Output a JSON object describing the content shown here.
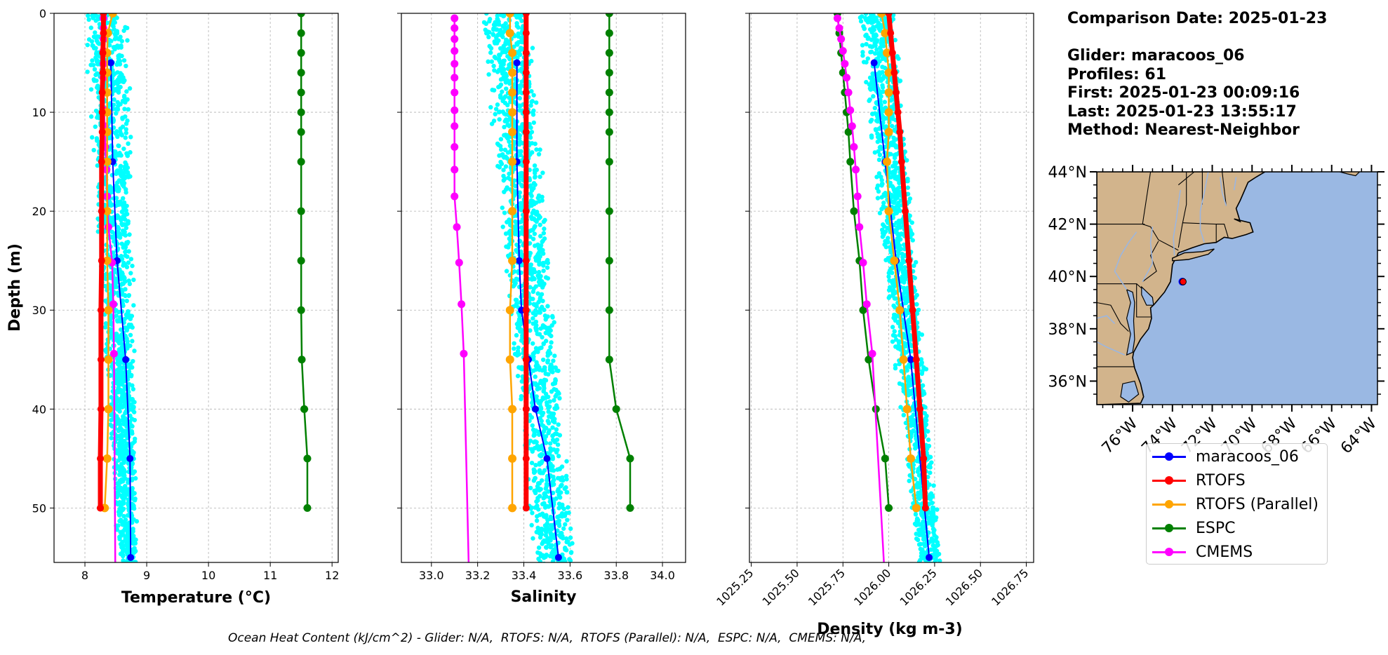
{
  "colors": {
    "glider": "#0000ff",
    "rtofs": "#ff0000",
    "rtofs_parallel": "#ffa500",
    "espc": "#008000",
    "cmems": "#ff00ff",
    "glider_points": "#00ffff",
    "land": "#d2b48c",
    "ocean": "#9ab8e3",
    "river": "#9cb6df"
  },
  "info": {
    "comparison_date": "Comparison Date: 2025-01-23",
    "glider": "Glider: maracoos_06",
    "profiles": "Profiles: 61",
    "first": "First: 2025-01-23 00:09:16",
    "last": "Last: 2025-01-23 13:55:17",
    "method": "Method: Nearest-Neighbor"
  },
  "footnote": "Ocean Heat Content (kJ/cm^2) - Glider: N/A,  RTOFS: N/A,  RTOFS (Parallel): N/A,  ESPC: N/A,  CMEMS: N/A,",
  "legend": [
    {
      "label": "maracoos_06",
      "color": "#0000ff"
    },
    {
      "label": "RTOFS",
      "color": "#ff0000"
    },
    {
      "label": "RTOFS (Parallel)",
      "color": "#ffa500"
    },
    {
      "label": "ESPC",
      "color": "#008000"
    },
    {
      "label": "CMEMS",
      "color": "#ff00ff"
    }
  ],
  "chart_data": [
    {
      "type": "line",
      "xlabel": "Temperature (°C)",
      "ylabel": "Depth (m)",
      "xlim": [
        7.5,
        12.1
      ],
      "ylim": [
        55.5,
        0
      ],
      "xticks": [
        8,
        9,
        10,
        11,
        12
      ],
      "yticks": [
        0,
        10,
        20,
        30,
        40,
        50
      ],
      "grid": true,
      "scatter": {
        "name": "glider profiles",
        "x_range_top": [
          8.0,
          8.7
        ],
        "x_range_bottom": [
          8.55,
          8.85
        ]
      },
      "series": [
        {
          "name": "maracoos_06",
          "x": [
            8.42,
            8.45,
            8.52,
            8.66,
            8.73,
            8.74
          ],
          "y": [
            5,
            15,
            25,
            35,
            45,
            55
          ]
        },
        {
          "name": "RTOFS",
          "x": [
            8.3,
            8.3,
            8.29,
            8.29,
            8.28,
            8.28,
            8.28,
            8.27,
            8.27,
            8.27,
            8.26,
            8.26,
            8.26,
            8.25,
            8.25,
            8.25
          ],
          "y": [
            0,
            2,
            4,
            6,
            8,
            10,
            12,
            15,
            20,
            25,
            30,
            35,
            40,
            45,
            50,
            50
          ]
        },
        {
          "name": "RTOFS (Parallel)",
          "x": [
            8.45,
            8.37,
            8.36,
            8.36,
            8.36,
            8.36,
            8.36,
            8.36,
            8.36,
            8.36,
            8.38,
            8.38,
            8.38,
            8.36,
            8.32
          ],
          "y": [
            0,
            2,
            4,
            6,
            8,
            10,
            12,
            15,
            20,
            25,
            30,
            35,
            40,
            45,
            50
          ]
        },
        {
          "name": "ESPC",
          "x": [
            11.5,
            11.5,
            11.5,
            11.5,
            11.5,
            11.5,
            11.5,
            11.5,
            11.5,
            11.5,
            11.5,
            11.51,
            11.55,
            11.6,
            11.6
          ],
          "y": [
            0,
            2,
            4,
            6,
            8,
            10,
            12,
            15,
            20,
            25,
            30,
            35,
            40,
            45,
            50
          ]
        },
        {
          "name": "CMEMS",
          "x": [
            8.3,
            8.3,
            8.3,
            8.3,
            8.3,
            8.3,
            8.3,
            8.31,
            8.32,
            8.33,
            8.35,
            8.36,
            8.38,
            8.44,
            8.46,
            8.47
          ],
          "y": [
            0.5,
            1.5,
            2.6,
            3.8,
            5.1,
            6.5,
            8,
            9.8,
            11.4,
            13.5,
            15.8,
            18.5,
            21.6,
            25.2,
            29.4,
            34.4
          ]
        }
      ]
    },
    {
      "type": "line",
      "xlabel": "Salinity",
      "ylabel": "",
      "xlim": [
        32.87,
        34.1
      ],
      "ylim": [
        55.5,
        0
      ],
      "xticks": [
        33.0,
        33.2,
        33.4,
        33.6,
        33.8,
        34.0
      ],
      "yticks": [
        0,
        10,
        20,
        30,
        40,
        50
      ],
      "grid": true,
      "scatter": {
        "name": "glider profiles",
        "x_range_top": [
          33.22,
          33.42
        ],
        "x_range_bottom": [
          33.45,
          33.62
        ]
      },
      "series": [
        {
          "name": "maracoos_06",
          "x": [
            33.37,
            33.37,
            33.38,
            33.39,
            33.42,
            33.45,
            33.5,
            33.55
          ],
          "y": [
            5,
            15,
            25,
            30,
            35,
            40,
            45,
            55
          ]
        },
        {
          "name": "RTOFS",
          "x": [
            33.41,
            33.41,
            33.41,
            33.41,
            33.41,
            33.41,
            33.41,
            33.41,
            33.41,
            33.41,
            33.41,
            33.41,
            33.41,
            33.41,
            33.41
          ],
          "y": [
            0,
            2,
            4,
            6,
            8,
            10,
            12,
            15,
            20,
            25,
            30,
            35,
            40,
            45,
            50
          ]
        },
        {
          "name": "RTOFS (Parallel)",
          "x": [
            33.34,
            33.34,
            33.35,
            33.35,
            33.35,
            33.35,
            33.35,
            33.35,
            33.35,
            33.35,
            33.34,
            33.34,
            33.35,
            33.35,
            33.35
          ],
          "y": [
            0,
            2,
            4,
            6,
            8,
            10,
            12,
            15,
            20,
            25,
            30,
            35,
            40,
            45,
            50
          ]
        },
        {
          "name": "ESPC",
          "x": [
            33.77,
            33.77,
            33.77,
            33.77,
            33.77,
            33.77,
            33.77,
            33.77,
            33.77,
            33.77,
            33.77,
            33.77,
            33.8,
            33.86,
            33.86
          ],
          "y": [
            0,
            2,
            4,
            6,
            8,
            10,
            12,
            15,
            20,
            25,
            30,
            35,
            40,
            45,
            50
          ]
        },
        {
          "name": "CMEMS",
          "x": [
            33.1,
            33.1,
            33.1,
            33.1,
            33.1,
            33.1,
            33.1,
            33.1,
            33.1,
            33.1,
            33.1,
            33.1,
            33.11,
            33.12,
            33.13,
            33.14
          ],
          "y": [
            0.5,
            1.5,
            2.6,
            3.8,
            5.1,
            6.5,
            8,
            9.8,
            11.4,
            13.5,
            15.8,
            18.5,
            21.6,
            25.2,
            29.4,
            34.4
          ]
        }
      ]
    },
    {
      "type": "line",
      "xlabel": "Density (kg m-3)",
      "ylabel": "",
      "xlim": [
        1025.24,
        1026.79
      ],
      "ylim": [
        55.5,
        0
      ],
      "xticks": [
        1025.25,
        1025.5,
        1025.75,
        1026.0,
        1026.25,
        1026.5,
        1026.75
      ],
      "yticks": [
        0,
        10,
        20,
        30,
        40,
        50
      ],
      "grid": true,
      "scatter": {
        "name": "glider profiles",
        "x_range_top": [
          1025.83,
          1026.03
        ],
        "x_range_bottom": [
          1026.16,
          1026.29
        ]
      },
      "series": [
        {
          "name": "maracoos_06",
          "x": [
            1025.92,
            1025.98,
            1026.04,
            1026.12,
            1026.22
          ],
          "y": [
            5,
            15,
            25,
            35,
            55
          ]
        },
        {
          "name": "RTOFS",
          "x": [
            1026.0,
            1026.01,
            1026.02,
            1026.03,
            1026.04,
            1026.05,
            1026.06,
            1026.07,
            1026.09,
            1026.11,
            1026.13,
            1026.15,
            1026.17,
            1026.19,
            1026.2
          ],
          "y": [
            0,
            2,
            4,
            6,
            8,
            10,
            12,
            15,
            20,
            25,
            30,
            35,
            40,
            45,
            50
          ]
        },
        {
          "name": "RTOFS (Parallel)",
          "x": [
            1025.96,
            1025.98,
            1025.99,
            1026.0,
            1026.0,
            1026.0,
            1026.0,
            1025.99,
            1026.0,
            1026.03,
            1026.06,
            1026.08,
            1026.1,
            1026.12,
            1026.15
          ],
          "y": [
            0,
            2,
            4,
            6,
            8,
            10,
            12,
            15,
            20,
            25,
            30,
            35,
            40,
            45,
            50
          ]
        },
        {
          "name": "ESPC",
          "x": [
            1025.72,
            1025.73,
            1025.74,
            1025.75,
            1025.76,
            1025.77,
            1025.78,
            1025.79,
            1025.81,
            1025.84,
            1025.86,
            1025.89,
            1025.93,
            1025.98,
            1026.0
          ],
          "y": [
            0,
            2,
            4,
            6,
            8,
            10,
            12,
            15,
            20,
            25,
            30,
            35,
            40,
            45,
            50
          ]
        },
        {
          "name": "CMEMS",
          "x": [
            1025.72,
            1025.73,
            1025.74,
            1025.75,
            1025.76,
            1025.77,
            1025.78,
            1025.79,
            1025.8,
            1025.81,
            1025.82,
            1025.83,
            1025.84,
            1025.86,
            1025.88,
            1025.91
          ],
          "y": [
            0.5,
            1.5,
            2.6,
            3.8,
            5.1,
            6.5,
            8,
            9.8,
            11.4,
            13.5,
            15.8,
            18.5,
            21.6,
            25.2,
            29.4,
            34.4
          ]
        }
      ]
    }
  ],
  "map": {
    "lon_range": [
      -77.8,
      -63.7
    ],
    "lat_range": [
      35.1,
      44
    ],
    "yticks": [
      "36°N",
      "38°N",
      "40°N",
      "42°N",
      "44°N"
    ],
    "xticks": [
      "76°W",
      "74°W",
      "72°W",
      "70°W",
      "68°W",
      "66°W",
      "64°W"
    ],
    "glider_location": {
      "lon": -73.5,
      "lat": 39.8
    }
  }
}
